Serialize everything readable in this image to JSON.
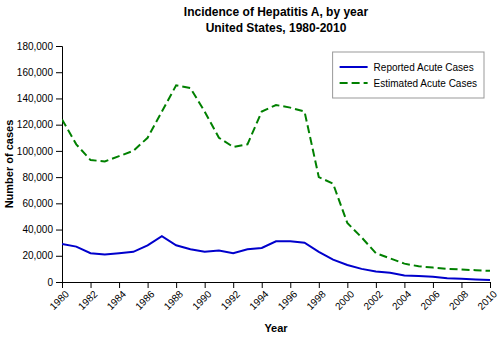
{
  "chart_data": {
    "type": "line",
    "title": "Incidence of Hepatitis A, by year",
    "subtitle": "United States, 1980-2010",
    "x_label": "Year",
    "y_label": "Number of cases",
    "x": [
      1980,
      1981,
      1982,
      1983,
      1984,
      1985,
      1986,
      1987,
      1988,
      1989,
      1990,
      1991,
      1992,
      1993,
      1994,
      1995,
      1996,
      1997,
      1998,
      1999,
      2000,
      2001,
      2002,
      2003,
      2004,
      2005,
      2006,
      2007,
      2008,
      2009,
      2010
    ],
    "series": [
      {
        "name": "Reported Acute Cases",
        "color": "#0000cc",
        "line_style": "solid",
        "values": [
          29087,
          27000,
          22000,
          21000,
          22000,
          23000,
          28000,
          35000,
          28000,
          25000,
          23000,
          24000,
          22000,
          25000,
          26000,
          31000,
          31000,
          30000,
          23000,
          17000,
          13000,
          10000,
          8000,
          7000,
          5000,
          4500,
          4000,
          2800,
          2500,
          1987,
          1500
        ]
      },
      {
        "name": "Estimated Acute Cases",
        "color": "#008000",
        "line_style": "dashed",
        "values": [
          124000,
          105000,
          93000,
          92000,
          96000,
          100000,
          110000,
          130000,
          150000,
          148000,
          130000,
          110000,
          103000,
          105000,
          130000,
          135000,
          133000,
          130000,
          80000,
          75000,
          45000,
          34000,
          22000,
          18000,
          14000,
          12000,
          11000,
          10000,
          9500,
          9000,
          8500
        ]
      }
    ],
    "xlim": [
      1980,
      2010
    ],
    "xticks": [
      1980,
      1982,
      1984,
      1986,
      1988,
      1990,
      1992,
      1994,
      1996,
      1998,
      2000,
      2002,
      2004,
      2006,
      2008,
      2010
    ],
    "ylim": [
      0,
      180000
    ],
    "yticks": [
      0,
      {
        "value": 20000,
        "label": "20,000"
      },
      {
        "value": 40000,
        "label": "40,000"
      },
      {
        "value": 60000,
        "label": "60,000"
      },
      {
        "value": 80000,
        "label": "80,000"
      },
      {
        "value": 100000,
        "label": "100,000"
      },
      {
        "value": 120000,
        "label": "120,000"
      },
      {
        "value": 140000,
        "label": "140,000"
      },
      {
        "value": 160000,
        "label": "160,000"
      },
      {
        "value": 180000,
        "label": "180,000"
      }
    ],
    "grid": false,
    "legend": "upper right"
  }
}
